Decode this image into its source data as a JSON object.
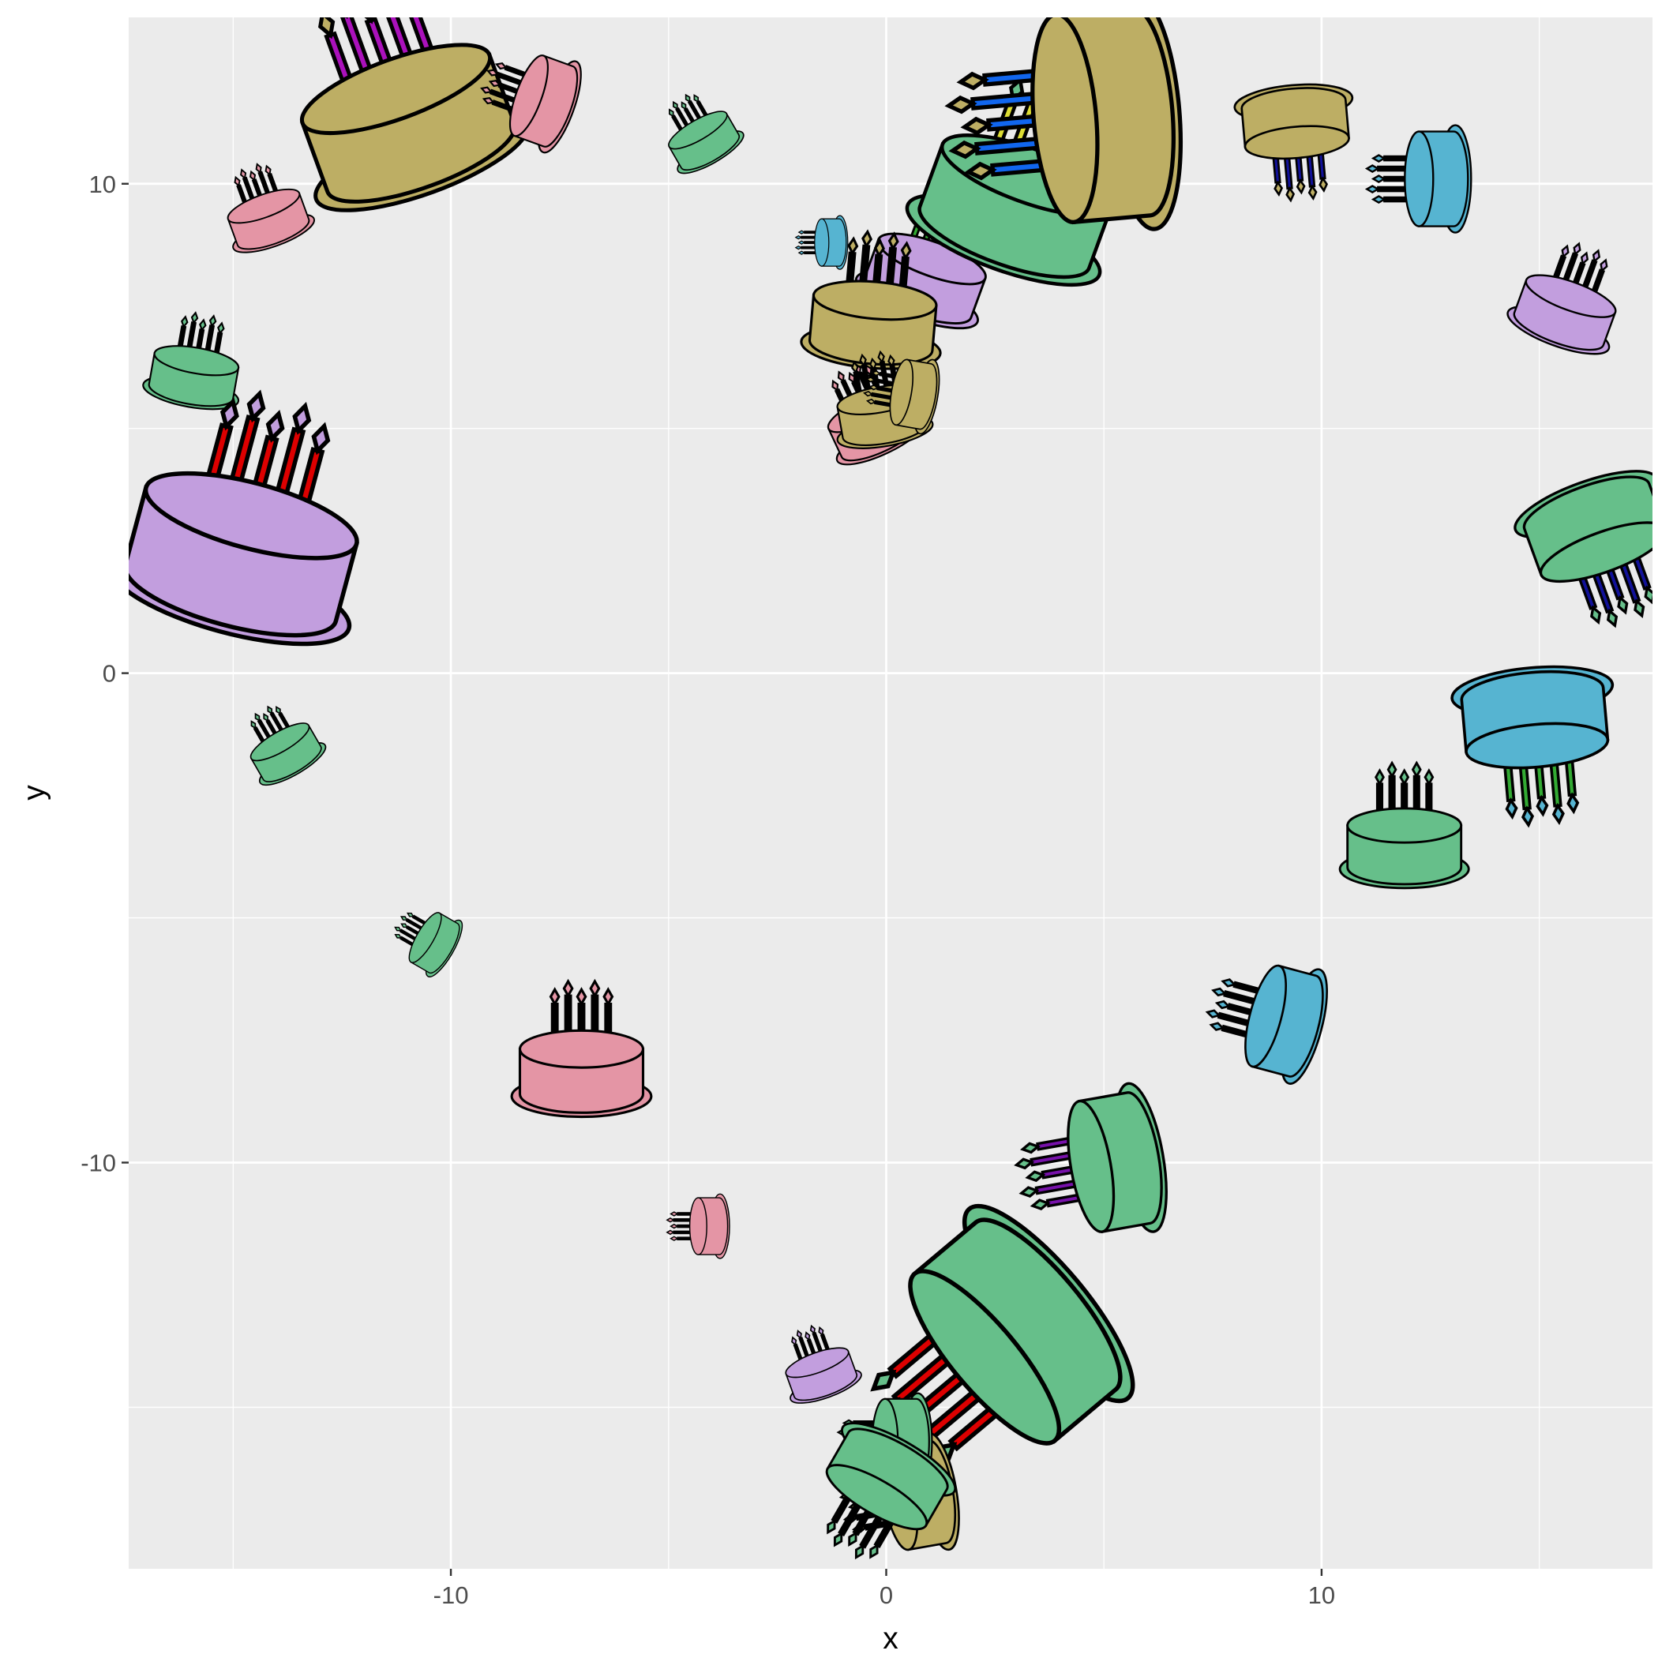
{
  "chart_data": {
    "type": "scatter",
    "title": "",
    "xlabel": "x",
    "ylabel": "y",
    "xlim": [
      -17.4,
      17.6
    ],
    "ylim": [
      -18.3,
      13.4
    ],
    "x_ticks": [
      -10,
      0,
      10
    ],
    "y_ticks": [
      -10,
      0,
      10
    ],
    "x_tick_labels": [
      "-10",
      "0",
      "10"
    ],
    "y_tick_labels": [
      "-10",
      "0",
      "10"
    ],
    "grid": true,
    "legend": "none",
    "marker": "birthday-cake-glyph",
    "points": [
      {
        "x": -11.0,
        "y": 11.3,
        "size": 2.1,
        "angle": -20,
        "color": "#BDAE64",
        "candle": "#AA11BB"
      },
      {
        "x": -7.9,
        "y": 11.7,
        "size": 0.9,
        "angle": -70,
        "color": "#E495A5",
        "candle": "#000000"
      },
      {
        "x": -4.2,
        "y": 10.9,
        "size": 0.7,
        "angle": -30,
        "color": "#66BF8A",
        "candle": "#000000"
      },
      {
        "x": -14.2,
        "y": 9.3,
        "size": 0.8,
        "angle": -20,
        "color": "#E495A5",
        "candle": "#000000"
      },
      {
        "x": -15.9,
        "y": 6.1,
        "size": 0.9,
        "angle": 10,
        "color": "#66BF8A",
        "candle": "#000000"
      },
      {
        "x": -14.8,
        "y": 2.5,
        "size": 2.3,
        "angle": 15,
        "color": "#C29EDE",
        "candle": "#DD0000"
      },
      {
        "x": -13.8,
        "y": -1.6,
        "size": 0.7,
        "angle": -30,
        "color": "#66BF8A",
        "candle": "#000000"
      },
      {
        "x": -10.4,
        "y": -5.5,
        "size": 0.6,
        "angle": -60,
        "color": "#66BF8A",
        "candle": "#000000"
      },
      {
        "x": -7.0,
        "y": -8.1,
        "size": 1.3,
        "angle": 0,
        "color": "#E495A5",
        "candle": "#000000"
      },
      {
        "x": -4.1,
        "y": -11.3,
        "size": 0.6,
        "angle": -90,
        "color": "#E495A5",
        "candle": "#000000"
      },
      {
        "x": -1.5,
        "y": -14.3,
        "size": 0.7,
        "angle": -20,
        "color": "#C29EDE",
        "candle": "#000000"
      },
      {
        "x": -1.3,
        "y": 8.8,
        "size": 0.5,
        "angle": -90,
        "color": "#56B4D1",
        "candle": "#000000"
      },
      {
        "x": 0.9,
        "y": 8.1,
        "size": 1.2,
        "angle": 20,
        "color": "#C29EDE",
        "candle": "#33AA33"
      },
      {
        "x": -0.3,
        "y": 7.2,
        "size": 1.3,
        "angle": 5,
        "color": "#BDAE64",
        "candle": "#000000"
      },
      {
        "x": -0.3,
        "y": 5.1,
        "size": 0.9,
        "angle": -25,
        "color": "#E495A5",
        "candle": "#000000"
      },
      {
        "x": -0.1,
        "y": 5.3,
        "size": 0.9,
        "angle": -10,
        "color": "#BDAE64",
        "candle": "#000000"
      },
      {
        "x": 0.6,
        "y": 5.7,
        "size": 0.7,
        "angle": -80,
        "color": "#BDAE64",
        "candle": "#000000"
      },
      {
        "x": 3.0,
        "y": 9.6,
        "size": 1.9,
        "angle": 20,
        "color": "#66BF8A",
        "candle": "#DDDD33"
      },
      {
        "x": 4.9,
        "y": 11.4,
        "size": 2.2,
        "angle": -95,
        "color": "#BDAE64",
        "candle": "#1166EE"
      },
      {
        "x": 9.4,
        "y": 11.2,
        "size": 1.1,
        "angle": 175,
        "color": "#BDAE64",
        "candle": "#111199"
      },
      {
        "x": 12.6,
        "y": 10.1,
        "size": 1.0,
        "angle": -90,
        "color": "#56B4D1",
        "candle": "#000000"
      },
      {
        "x": 15.6,
        "y": 7.4,
        "size": 1.0,
        "angle": 20,
        "color": "#C29EDE",
        "candle": "#000000"
      },
      {
        "x": 16.3,
        "y": 2.9,
        "size": 1.4,
        "angle": 160,
        "color": "#66BF8A",
        "candle": "#111199"
      },
      {
        "x": 14.9,
        "y": -1.0,
        "size": 1.5,
        "angle": 175,
        "color": "#56B4D1",
        "candle": "#33AA33"
      },
      {
        "x": 11.9,
        "y": -3.5,
        "size": 1.2,
        "angle": 0,
        "color": "#66BF8A",
        "candle": "#000000"
      },
      {
        "x": 9.1,
        "y": -7.1,
        "size": 1.1,
        "angle": -75,
        "color": "#56B4D1",
        "candle": "#000000"
      },
      {
        "x": 5.2,
        "y": -10.0,
        "size": 1.4,
        "angle": -100,
        "color": "#66BF8A",
        "candle": "#7711AA"
      },
      {
        "x": 2.9,
        "y": -13.5,
        "size": 2.3,
        "angle": -130,
        "color": "#66BF8A",
        "candle": "#DD0000"
      },
      {
        "x": 0.7,
        "y": -16.8,
        "size": 1.1,
        "angle": -100,
        "color": "#BDAE64",
        "candle": "#000000"
      },
      {
        "x": 0.3,
        "y": -15.7,
        "size": 0.9,
        "angle": -90,
        "color": "#66BF8A",
        "candle": "#000000"
      },
      {
        "x": 0.0,
        "y": -16.5,
        "size": 1.2,
        "angle": -150,
        "color": "#66BF8A",
        "candle": "#000000"
      }
    ]
  }
}
